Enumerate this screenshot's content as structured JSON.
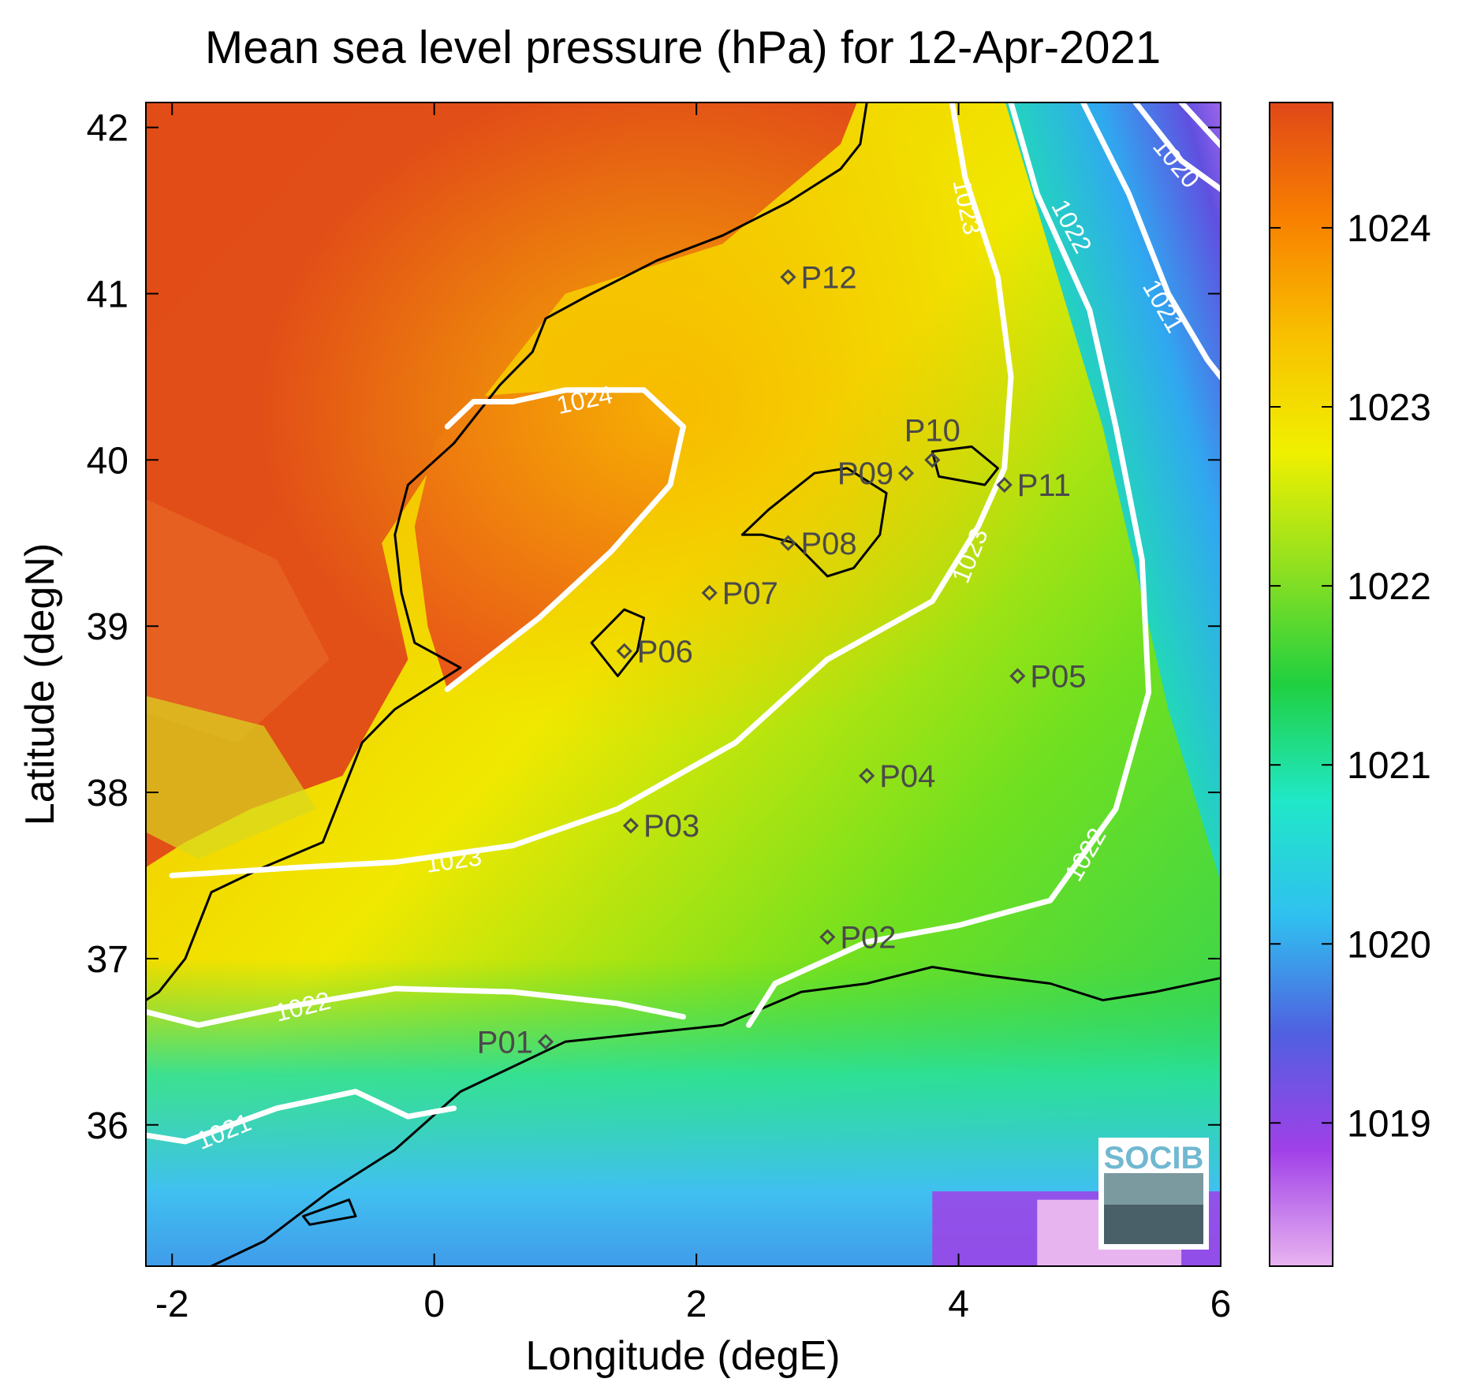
{
  "title": "Mean sea level pressure (hPa) for 12-Apr-2021",
  "xlabel": "Longitude (degE)",
  "ylabel": "Latitude (degN)",
  "xlim": [
    -2.2,
    6
  ],
  "ylim": [
    35.15,
    42.15
  ],
  "xticks": [
    {
      "value": -2,
      "label": "-2"
    },
    {
      "value": 0,
      "label": "0"
    },
    {
      "value": 2,
      "label": "2"
    },
    {
      "value": 4,
      "label": "4"
    },
    {
      "value": 6,
      "label": "6"
    }
  ],
  "yticks": [
    {
      "value": 36,
      "label": "36"
    },
    {
      "value": 37,
      "label": "37"
    },
    {
      "value": 38,
      "label": "38"
    },
    {
      "value": 39,
      "label": "39"
    },
    {
      "value": 40,
      "label": "40"
    },
    {
      "value": 41,
      "label": "41"
    },
    {
      "value": 42,
      "label": "42"
    }
  ],
  "colorbar": {
    "range": [
      1018.2,
      1024.7
    ],
    "ticks": [
      {
        "value": 1019,
        "label": "1019"
      },
      {
        "value": 1020,
        "label": "1020"
      },
      {
        "value": 1021,
        "label": "1021"
      },
      {
        "value": 1022,
        "label": "1022"
      },
      {
        "value": 1023,
        "label": "1023"
      },
      {
        "value": 1024,
        "label": "1024"
      }
    ],
    "colors": [
      "#e8b4f0",
      "#a040e8",
      "#5060e0",
      "#30c0f0",
      "#20e8c8",
      "#20d040",
      "#90e020",
      "#f0f000",
      "#f8c000",
      "#f88000",
      "#e04818"
    ]
  },
  "contour_labels": [
    {
      "text": "1024",
      "lon": 1.15,
      "lat": 40.35,
      "angle": -12
    },
    {
      "text": "1023",
      "lon": 0.15,
      "lat": 37.58,
      "angle": -8
    },
    {
      "text": "1023",
      "lon": 4.1,
      "lat": 39.42,
      "angle": -68
    },
    {
      "text": "1023",
      "lon": 4.05,
      "lat": 41.52,
      "angle": 78
    },
    {
      "text": "1022",
      "lon": -1.0,
      "lat": 36.7,
      "angle": -14
    },
    {
      "text": "1022",
      "lon": 4.98,
      "lat": 37.62,
      "angle": -60
    },
    {
      "text": "1022",
      "lon": 4.85,
      "lat": 41.4,
      "angle": 62
    },
    {
      "text": "1021",
      "lon": -1.6,
      "lat": 35.95,
      "angle": -22
    },
    {
      "text": "1021",
      "lon": 5.55,
      "lat": 40.92,
      "angle": 60
    },
    {
      "text": "1020",
      "lon": 5.65,
      "lat": 41.78,
      "angle": 50
    }
  ],
  "stations": [
    {
      "name": "P01",
      "lon": 0.85,
      "lat": 36.5,
      "label_side": "left"
    },
    {
      "name": "P02",
      "lon": 3.0,
      "lat": 37.13,
      "label_side": "right"
    },
    {
      "name": "P03",
      "lon": 1.5,
      "lat": 37.8,
      "label_side": "right"
    },
    {
      "name": "P04",
      "lon": 3.3,
      "lat": 38.1,
      "label_side": "right"
    },
    {
      "name": "P05",
      "lon": 4.45,
      "lat": 38.7,
      "label_side": "right"
    },
    {
      "name": "P06",
      "lon": 1.45,
      "lat": 38.85,
      "label_side": "right"
    },
    {
      "name": "P07",
      "lon": 2.1,
      "lat": 39.2,
      "label_side": "right"
    },
    {
      "name": "P08",
      "lon": 2.7,
      "lat": 39.5,
      "label_side": "right"
    },
    {
      "name": "P09",
      "lon": 3.6,
      "lat": 39.92,
      "label_side": "left"
    },
    {
      "name": "P10",
      "lon": 3.8,
      "lat": 40.0,
      "label_side": "top"
    },
    {
      "name": "P11",
      "lon": 4.35,
      "lat": 39.85,
      "label_side": "right"
    },
    {
      "name": "P12",
      "lon": 2.7,
      "lat": 41.1,
      "label_side": "right"
    }
  ],
  "logo": {
    "text": "SOCIB"
  }
}
